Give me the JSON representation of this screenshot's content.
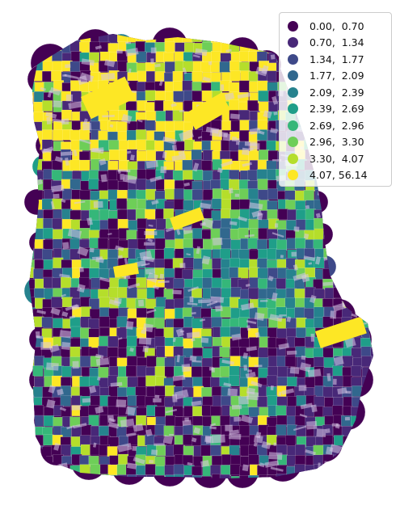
{
  "map": {
    "legend": {
      "items": [
        {
          "label": "0.00,  0.70",
          "color": "#440154"
        },
        {
          "label": "0.70,  1.34",
          "color": "#482878"
        },
        {
          "label": "1.34,  1.77",
          "color": "#3e4989"
        },
        {
          "label": "1.77,  2.09",
          "color": "#31688e"
        },
        {
          "label": "2.09,  2.39",
          "color": "#26828e"
        },
        {
          "label": "2.39,  2.69",
          "color": "#1f9e89"
        },
        {
          "label": "2.69,  2.96",
          "color": "#35b779"
        },
        {
          "label": "2.96,  3.30",
          "color": "#6ece58"
        },
        {
          "label": "3.30,  4.07",
          "color": "#b5de2b"
        },
        {
          "label": "4.07, 56.14",
          "color": "#fde725"
        }
      ]
    }
  }
}
